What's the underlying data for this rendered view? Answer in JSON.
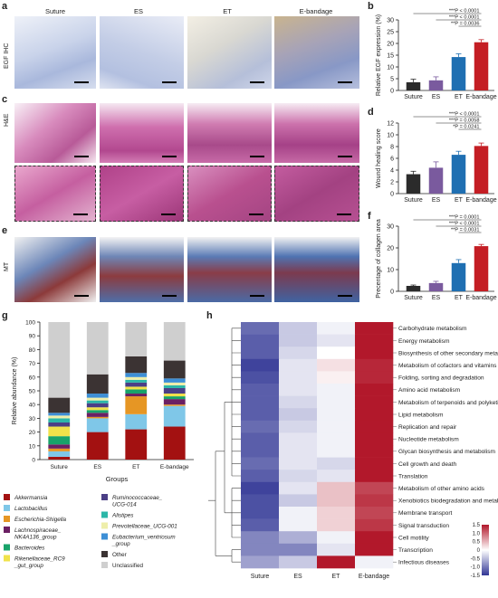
{
  "panel_labels": {
    "a": "a",
    "b": "b",
    "c": "c",
    "d": "d",
    "e": "e",
    "f": "f",
    "g": "g",
    "h": "h"
  },
  "micrograph_columns": [
    "Suture",
    "ES",
    "ET",
    "E-bandage"
  ],
  "row_labels": {
    "a": "EGF IHC",
    "c": "H&E",
    "e": "MT"
  },
  "colors": {
    "suture": "#2b2b2b",
    "es": "#7a5a9e",
    "et": "#1f6fb2",
    "ebandage": "#c41e24",
    "ihc_bg": "#d8dff0",
    "he_bg": "#c86fa8",
    "mt_bg": "#3c5f9a"
  },
  "chart_data": [
    {
      "id": "b",
      "type": "bar",
      "categories": [
        "Suture",
        "ES",
        "ET",
        "E-bandage"
      ],
      "values": [
        3.5,
        4.3,
        14.2,
        20.5
      ],
      "errors": [
        1.3,
        1.5,
        1.4,
        1.1
      ],
      "ylabel": "Relative EGF expression (%)",
      "ylim": [
        0,
        30
      ],
      "yticks": [
        0,
        5,
        10,
        15,
        20,
        25,
        30
      ],
      "significance": [
        "***P < 0.0001",
        "***P < 0.0001",
        "**P = 0.0036"
      ]
    },
    {
      "id": "d",
      "type": "bar",
      "categories": [
        "Suture",
        "ES",
        "ET",
        "E-bandage"
      ],
      "values": [
        3.3,
        4.4,
        6.6,
        8.1
      ],
      "errors": [
        0.5,
        1.0,
        0.6,
        0.5
      ],
      "ylabel": "Wound healing score",
      "ylim": [
        0,
        12
      ],
      "yticks": [
        0,
        2,
        4,
        6,
        8,
        10,
        12
      ],
      "significance": [
        "***P < 0.0001",
        "***P = 0.0058",
        "*P = 0.0241"
      ]
    },
    {
      "id": "f",
      "type": "bar",
      "categories": [
        "Suture",
        "ES",
        "ET",
        "E-bandage"
      ],
      "values": [
        2.5,
        3.8,
        13.0,
        20.8
      ],
      "errors": [
        0.4,
        0.8,
        1.6,
        0.8
      ],
      "ylabel": "Precentage of collagen area",
      "ylim": [
        0,
        30
      ],
      "yticks": [
        0,
        10,
        20,
        30
      ],
      "significance": [
        "***P = 0.0001",
        "***P < 0.0001",
        "**P = 0.0031"
      ]
    },
    {
      "id": "g",
      "type": "bar",
      "stacked": true,
      "categories": [
        "Suture",
        "ES",
        "ET",
        "E-bandage"
      ],
      "xlabel": "Groups",
      "ylabel": "Relative abundance (%)",
      "ylim": [
        0,
        100
      ],
      "yticks": [
        0,
        10,
        20,
        30,
        40,
        50,
        60,
        70,
        80,
        90,
        100
      ],
      "series": [
        {
          "name": "Akkermansia",
          "color": "#a31111",
          "values": [
            2,
            20,
            22,
            24
          ]
        },
        {
          "name": "Lactobacillus",
          "color": "#7fc7e8",
          "values": [
            4,
            10,
            11,
            15
          ]
        },
        {
          "name": "Escherichia-Shigella",
          "color": "#e69624",
          "values": [
            2,
            1,
            13,
            1
          ]
        },
        {
          "name": "Lachnospiraceae_NK4A136_group",
          "color": "#6b1f63",
          "values": [
            3,
            3,
            2,
            4
          ]
        },
        {
          "name": "Bacteroides",
          "color": "#18a36a",
          "values": [
            6,
            2,
            3,
            2
          ]
        },
        {
          "name": "Rikenellaceae_RC9_gut_group",
          "color": "#f0e24a",
          "values": [
            7,
            2,
            2,
            2
          ]
        },
        {
          "name": "Ruminococcaceae_UCG-014",
          "color": "#4b3f86",
          "values": [
            3,
            3,
            3,
            4
          ]
        },
        {
          "name": "Alistipes",
          "color": "#2bb7a8",
          "values": [
            3,
            2,
            2,
            2
          ]
        },
        {
          "name": "Prevotellaceae_UCG-001",
          "color": "#eeeeaa",
          "values": [
            2,
            2,
            2,
            2
          ]
        },
        {
          "name": "Eubacterium_ventriosum_group",
          "color": "#3d8fd6",
          "values": [
            2,
            3,
            3,
            3
          ]
        },
        {
          "name": "Other",
          "color": "#3b3333",
          "values": [
            11,
            14,
            12,
            13
          ]
        },
        {
          "name": "Unclassified",
          "color": "#cfcfcf",
          "values": [
            55,
            38,
            25,
            28
          ]
        }
      ]
    },
    {
      "id": "h",
      "type": "heatmap",
      "columns": [
        "Suture",
        "ES",
        "ET",
        "E-bandage"
      ],
      "rows": [
        "Carbohydrate metabolism",
        "Energy metabolism",
        "Biosynthesis of other secondary metabolites",
        "Metabolism of cofactors and vitamins",
        "Folding, sorting and degradation",
        "Amino acid metabolism",
        "Metabolism of terpenoids and polyketides",
        "Lipid metabolism",
        "Replication and repair",
        "Nucleotide metabolism",
        "Glycan biosynthesis and metabolism",
        "Cell growth and death",
        "Translation",
        "Metabolism of other amino acids",
        "Xenobiotics biodegradation and metabolism",
        "Membrane transport",
        "Signal transduction",
        "Cell motility",
        "Transcription",
        "Infectious diseases"
      ],
      "values": [
        [
          -1.1,
          -0.4,
          -0.1,
          1.5
        ],
        [
          -1.2,
          -0.4,
          -0.2,
          1.5
        ],
        [
          -1.2,
          -0.3,
          0.0,
          1.5
        ],
        [
          -1.4,
          -0.2,
          0.2,
          1.4
        ],
        [
          -1.3,
          -0.2,
          0.1,
          1.4
        ],
        [
          -1.2,
          -0.2,
          -0.1,
          1.5
        ],
        [
          -1.2,
          -0.3,
          -0.1,
          1.5
        ],
        [
          -1.2,
          -0.4,
          -0.1,
          1.5
        ],
        [
          -1.1,
          -0.3,
          -0.1,
          1.5
        ],
        [
          -1.2,
          -0.2,
          -0.1,
          1.5
        ],
        [
          -1.2,
          -0.2,
          -0.1,
          1.5
        ],
        [
          -1.1,
          -0.2,
          -0.3,
          1.5
        ],
        [
          -1.2,
          -0.3,
          -0.2,
          1.5
        ],
        [
          -1.4,
          -0.2,
          0.4,
          1.2
        ],
        [
          -1.3,
          -0.4,
          0.4,
          1.3
        ],
        [
          -1.3,
          -0.1,
          0.3,
          1.2
        ],
        [
          -1.2,
          -0.1,
          0.3,
          1.3
        ],
        [
          -0.9,
          -0.6,
          -0.1,
          1.5
        ],
        [
          -0.9,
          -0.9,
          -0.2,
          1.6
        ],
        [
          -0.7,
          -0.4,
          1.5,
          -0.1
        ]
      ],
      "colorbar_ticks": [
        "1.5",
        "1.0",
        "0.5",
        "0",
        "-0.5",
        "-1.0",
        "-1.5"
      ]
    }
  ],
  "legend_g": {
    "left": [
      "Akkermansia",
      "Lactobacillus",
      "Escherichia-Shigella",
      "Lachnospiraceae_\nNK4A136_group",
      "Bacteroides",
      "Rikenellaceae_RC9\n_gut_group"
    ],
    "right": [
      "Ruminococcaceae_\nUCG-014",
      "Alistipes",
      "Prevotellaceae_UCG-001",
      "Eubacterium_ventriosum\n_group",
      "Other",
      "Unclassified"
    ]
  }
}
